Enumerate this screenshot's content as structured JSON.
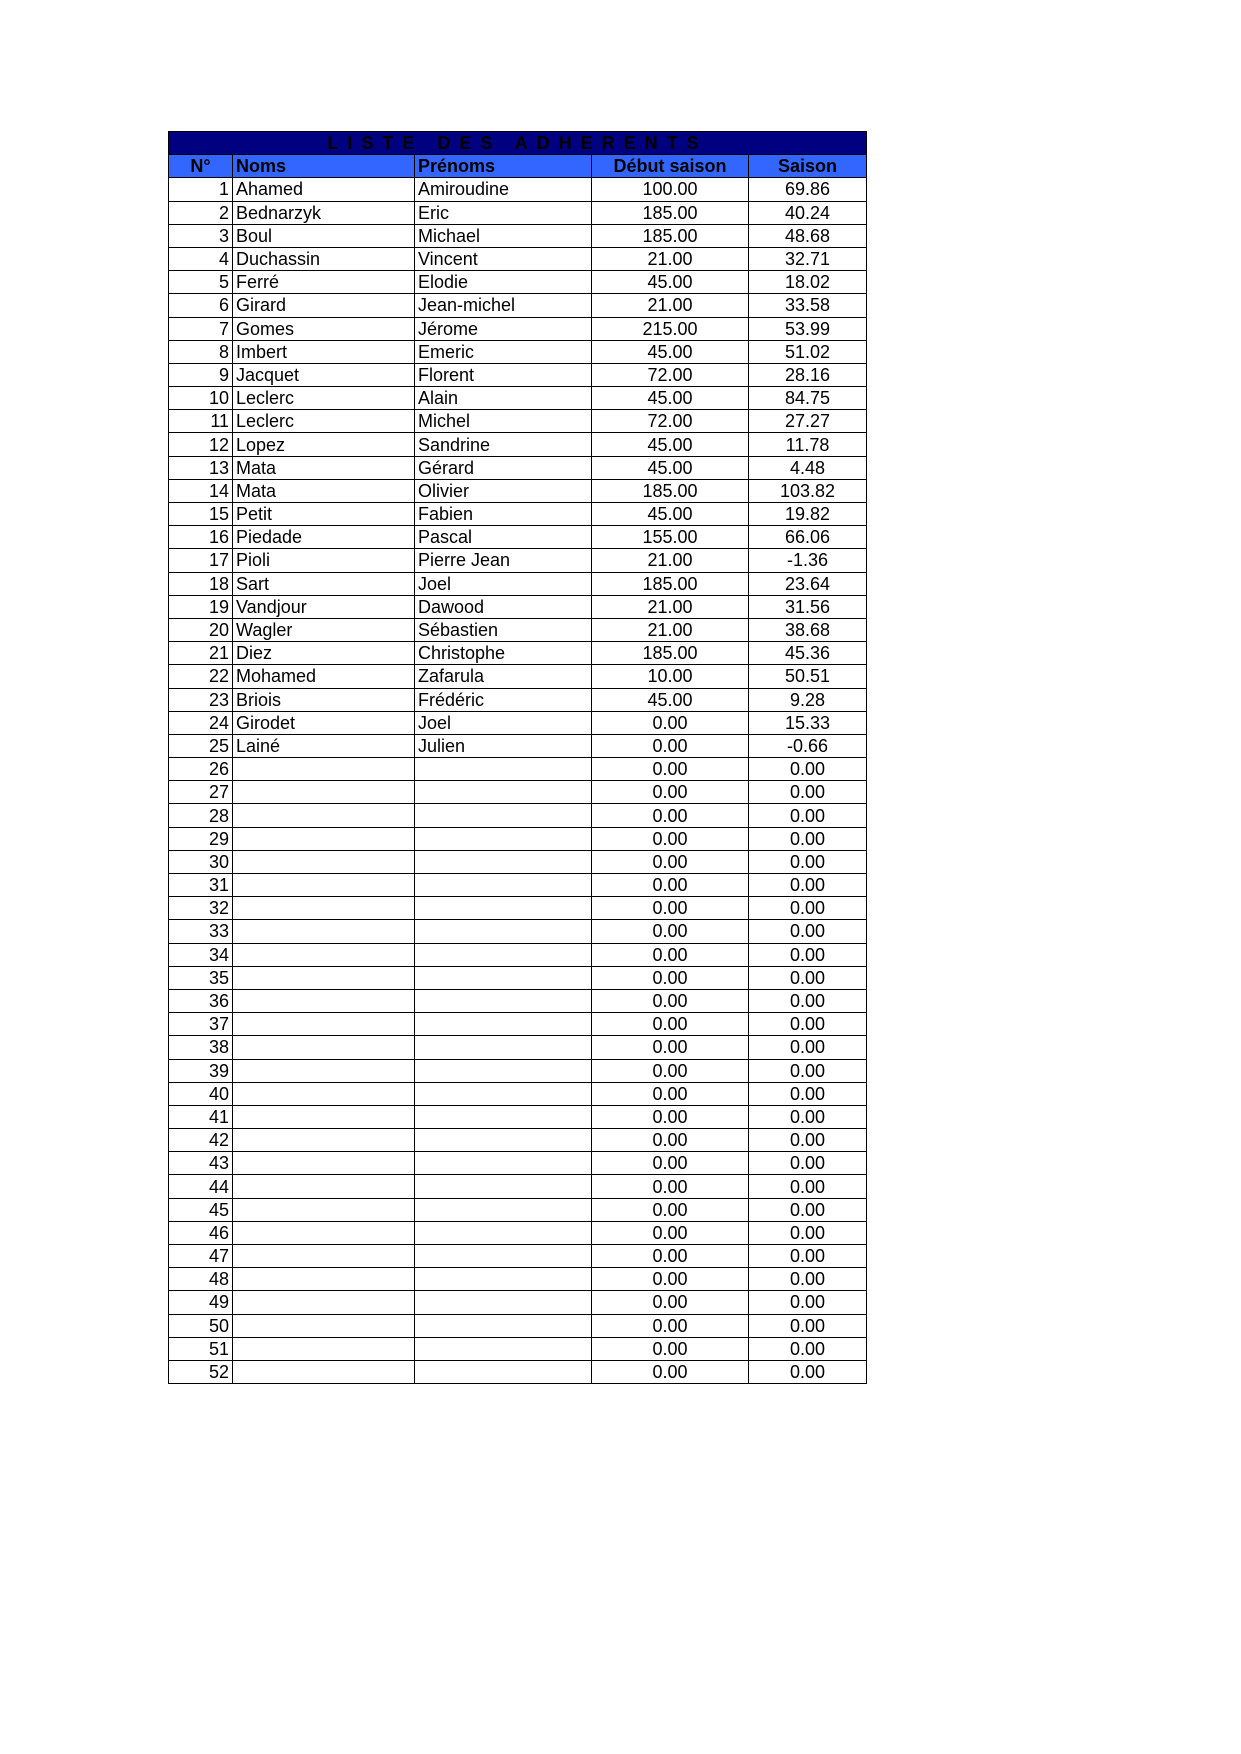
{
  "title": "LISTE DES ADHERENTS",
  "colors": {
    "title_bg": "#000080",
    "header_bg": "#3366ff",
    "header_text": "#ffff00"
  },
  "columns": [
    "N°",
    "Noms",
    "Prénoms",
    "Début saison",
    "Saison"
  ],
  "rows": [
    {
      "n": "1",
      "nom": "Ahamed",
      "prenom": "Amiroudine",
      "debut": "100.00",
      "saison": "69.86"
    },
    {
      "n": "2",
      "nom": "Bednarzyk",
      "prenom": "Eric",
      "debut": "185.00",
      "saison": "40.24"
    },
    {
      "n": "3",
      "nom": "Boul",
      "prenom": "Michael",
      "debut": "185.00",
      "saison": "48.68"
    },
    {
      "n": "4",
      "nom": "Duchassin",
      "prenom": "Vincent",
      "debut": "21.00",
      "saison": "32.71"
    },
    {
      "n": "5",
      "nom": "Ferré",
      "prenom": "Elodie",
      "debut": "45.00",
      "saison": "18.02"
    },
    {
      "n": "6",
      "nom": "Girard",
      "prenom": "Jean-michel",
      "debut": "21.00",
      "saison": "33.58"
    },
    {
      "n": "7",
      "nom": "Gomes",
      "prenom": "Jérome",
      "debut": "215.00",
      "saison": "53.99"
    },
    {
      "n": "8",
      "nom": "Imbert",
      "prenom": "Emeric",
      "debut": "45.00",
      "saison": "51.02"
    },
    {
      "n": "9",
      "nom": "Jacquet",
      "prenom": "Florent",
      "debut": "72.00",
      "saison": "28.16"
    },
    {
      "n": "10",
      "nom": "Leclerc",
      "prenom": "Alain",
      "debut": "45.00",
      "saison": "84.75"
    },
    {
      "n": "11",
      "nom": "Leclerc",
      "prenom": "Michel",
      "debut": "72.00",
      "saison": "27.27"
    },
    {
      "n": "12",
      "nom": "Lopez",
      "prenom": "Sandrine",
      "debut": "45.00",
      "saison": "11.78"
    },
    {
      "n": "13",
      "nom": "Mata",
      "prenom": "Gérard",
      "debut": "45.00",
      "saison": "4.48"
    },
    {
      "n": "14",
      "nom": "Mata",
      "prenom": "Olivier",
      "debut": "185.00",
      "saison": "103.82"
    },
    {
      "n": "15",
      "nom": "Petit",
      "prenom": "Fabien",
      "debut": "45.00",
      "saison": "19.82"
    },
    {
      "n": "16",
      "nom": "Piedade",
      "prenom": "Pascal",
      "debut": "155.00",
      "saison": "66.06"
    },
    {
      "n": "17",
      "nom": "Pioli",
      "prenom": "Pierre Jean",
      "debut": "21.00",
      "saison": "-1.36"
    },
    {
      "n": "18",
      "nom": "Sart",
      "prenom": "Joel",
      "debut": "185.00",
      "saison": "23.64"
    },
    {
      "n": "19",
      "nom": "Vandjour",
      "prenom": "Dawood",
      "debut": "21.00",
      "saison": "31.56"
    },
    {
      "n": "20",
      "nom": "Wagler",
      "prenom": "Sébastien",
      "debut": "21.00",
      "saison": "38.68"
    },
    {
      "n": "21",
      "nom": "Diez",
      "prenom": "Christophe",
      "debut": "185.00",
      "saison": "45.36"
    },
    {
      "n": "22",
      "nom": "Mohamed",
      "prenom": "Zafarula",
      "debut": "10.00",
      "saison": "50.51"
    },
    {
      "n": "23",
      "nom": "Briois",
      "prenom": "Frédéric",
      "debut": "45.00",
      "saison": "9.28"
    },
    {
      "n": "24",
      "nom": "Girodet",
      "prenom": "Joel",
      "debut": "0.00",
      "saison": "15.33"
    },
    {
      "n": "25",
      "nom": "Lainé",
      "prenom": "Julien",
      "debut": "0.00",
      "saison": "-0.66"
    },
    {
      "n": "26",
      "nom": "",
      "prenom": "",
      "debut": "0.00",
      "saison": "0.00"
    },
    {
      "n": "27",
      "nom": "",
      "prenom": "",
      "debut": "0.00",
      "saison": "0.00"
    },
    {
      "n": "28",
      "nom": "",
      "prenom": "",
      "debut": "0.00",
      "saison": "0.00"
    },
    {
      "n": "29",
      "nom": "",
      "prenom": "",
      "debut": "0.00",
      "saison": "0.00"
    },
    {
      "n": "30",
      "nom": "",
      "prenom": "",
      "debut": "0.00",
      "saison": "0.00"
    },
    {
      "n": "31",
      "nom": "",
      "prenom": "",
      "debut": "0.00",
      "saison": "0.00"
    },
    {
      "n": "32",
      "nom": "",
      "prenom": "",
      "debut": "0.00",
      "saison": "0.00"
    },
    {
      "n": "33",
      "nom": "",
      "prenom": "",
      "debut": "0.00",
      "saison": "0.00"
    },
    {
      "n": "34",
      "nom": "",
      "prenom": "",
      "debut": "0.00",
      "saison": "0.00"
    },
    {
      "n": "35",
      "nom": "",
      "prenom": "",
      "debut": "0.00",
      "saison": "0.00"
    },
    {
      "n": "36",
      "nom": "",
      "prenom": "",
      "debut": "0.00",
      "saison": "0.00"
    },
    {
      "n": "37",
      "nom": "",
      "prenom": "",
      "debut": "0.00",
      "saison": "0.00"
    },
    {
      "n": "38",
      "nom": "",
      "prenom": "",
      "debut": "0.00",
      "saison": "0.00"
    },
    {
      "n": "39",
      "nom": "",
      "prenom": "",
      "debut": "0.00",
      "saison": "0.00"
    },
    {
      "n": "40",
      "nom": "",
      "prenom": "",
      "debut": "0.00",
      "saison": "0.00"
    },
    {
      "n": "41",
      "nom": "",
      "prenom": "",
      "debut": "0.00",
      "saison": "0.00"
    },
    {
      "n": "42",
      "nom": "",
      "prenom": "",
      "debut": "0.00",
      "saison": "0.00"
    },
    {
      "n": "43",
      "nom": "",
      "prenom": "",
      "debut": "0.00",
      "saison": "0.00"
    },
    {
      "n": "44",
      "nom": "",
      "prenom": "",
      "debut": "0.00",
      "saison": "0.00"
    },
    {
      "n": "45",
      "nom": "",
      "prenom": "",
      "debut": "0.00",
      "saison": "0.00"
    },
    {
      "n": "46",
      "nom": "",
      "prenom": "",
      "debut": "0.00",
      "saison": "0.00"
    },
    {
      "n": "47",
      "nom": "",
      "prenom": "",
      "debut": "0.00",
      "saison": "0.00"
    },
    {
      "n": "48",
      "nom": "",
      "prenom": "",
      "debut": "0.00",
      "saison": "0.00"
    },
    {
      "n": "49",
      "nom": "",
      "prenom": "",
      "debut": "0.00",
      "saison": "0.00"
    },
    {
      "n": "50",
      "nom": "",
      "prenom": "",
      "debut": "0.00",
      "saison": "0.00"
    },
    {
      "n": "51",
      "nom": "",
      "prenom": "",
      "debut": "0.00",
      "saison": "0.00"
    },
    {
      "n": "52",
      "nom": "",
      "prenom": "",
      "debut": "0.00",
      "saison": "0.00"
    }
  ]
}
